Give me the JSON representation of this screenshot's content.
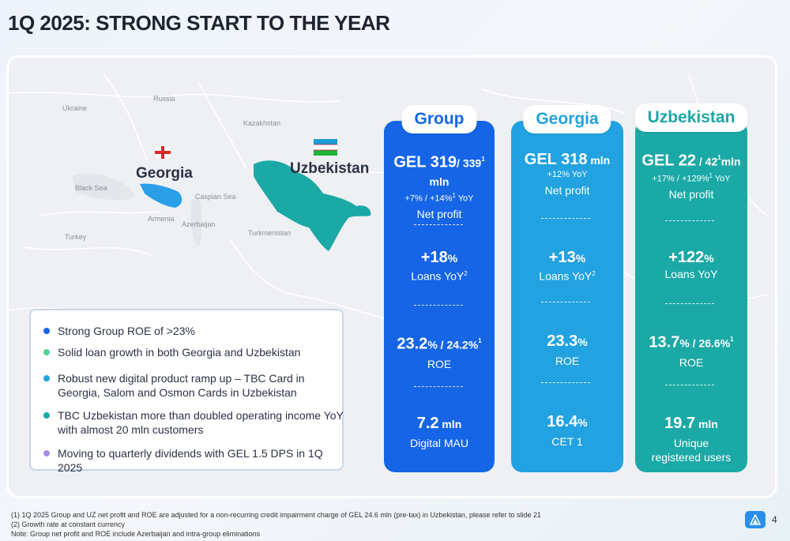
{
  "title": "1Q 2025: STRONG START TO THE YEAR",
  "map": {
    "labels": [
      "Ukraine",
      "Russia",
      "Kazakhstan",
      "Black Sea",
      "Caspian Sea",
      "Armenia",
      "Azerbaijan",
      "Turkey",
      "Turkmenistan"
    ],
    "georgia": "Georgia",
    "uzbekistan": "Uzbekistan"
  },
  "columns": {
    "group": {
      "header": "Group",
      "m1_big": "GEL 319",
      "m1_small": "/ 339",
      "m1_sup": "1",
      "m1_unit": "mln",
      "m1_sub": "+7% / +14%",
      "m1_sub_sup": "1",
      "m1_sub_tail": " YoY",
      "m1_label": "Net profit",
      "m2_big": "+18",
      "m2_pct": "%",
      "m2_label": "Loans YoY",
      "m2_sup": "2",
      "m3_big": "23.2",
      "m3_rest": "% / 24.2%",
      "m3_sup": "1",
      "m3_label": "ROE",
      "m4_big": "7.2",
      "m4_unit": " mln",
      "m4_label": "Digital MAU"
    },
    "georgia": {
      "header": "Georgia",
      "m1_big": "GEL 318",
      "m1_unit": " mln",
      "m1_sub": "+12% YoY",
      "m1_label": "Net profit",
      "m2_big": "+13",
      "m2_pct": "%",
      "m2_label": "Loans YoY",
      "m2_sup": "2",
      "m3_big": "23.3",
      "m3_rest": "%",
      "m3_label": "ROE",
      "m4_big": "16.4",
      "m4_unit": "%",
      "m4_label": "CET 1"
    },
    "uzbek": {
      "header": "Uzbekistan",
      "m1_big": "GEL 22",
      "m1_small": " / 42",
      "m1_sup": "1",
      "m1_unit": "mln",
      "m1_sub": "+17% / +129%",
      "m1_sub_sup": "1",
      "m1_sub_tail": " YoY",
      "m1_label": "Net profit",
      "m2_big": "+122",
      "m2_pct": "%",
      "m2_label": "Loans YoY",
      "m3_big": "13.7",
      "m3_rest": "% / 26.6%",
      "m3_sup": "1",
      "m3_label": "ROE",
      "m4_big": "19.7",
      "m4_unit": " mln",
      "m4_label1": "Unique",
      "m4_label2": "registered users"
    }
  },
  "bullets": [
    {
      "text": "Strong Group ROE of >23%",
      "color": "#1565e6"
    },
    {
      "text": "Solid loan growth in both Georgia and Uzbekistan",
      "color": "#4fd39a"
    },
    {
      "text": "Robust new digital product ramp up – TBC Card in Georgia, Salom and Osmon Cards in Uzbekistan",
      "color": "#22a2e0"
    },
    {
      "text": "TBC Uzbekistan more than doubled operating income YoY with almost 20 mln customers",
      "color": "#1ba9a6"
    },
    {
      "text": "Moving to quarterly dividends with GEL 1.5 DPS in 1Q 2025",
      "color": "#a58ee8"
    }
  ],
  "footnotes": [
    "(1) 1Q 2025 Group and UZ net profit and ROE are adjusted for a non-recurring credit impairment charge of GEL 24.6 mln (pre-tax) in Uzbekistan, please refer to slide 21",
    "(2) Growth rate at constant currency",
    "Note: Group net profit and ROE include Azerbaijan and intra-group eliminations"
  ],
  "page_number": "4"
}
